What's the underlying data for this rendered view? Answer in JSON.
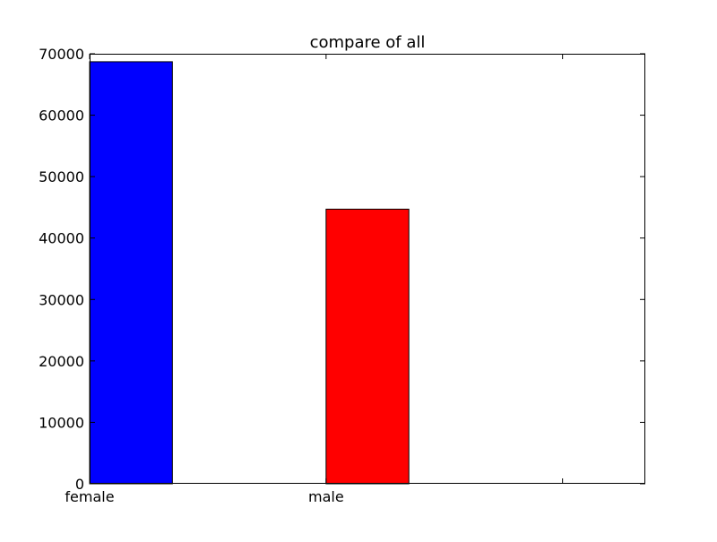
{
  "chart_data": {
    "type": "bar",
    "title": "compare of all",
    "xlabel": "",
    "ylabel": "",
    "categories": [
      "female",
      "male",
      ""
    ],
    "values": [
      68700,
      44700,
      0
    ],
    "colors": [
      "#0000ff",
      "#ff0000",
      "#008000"
    ],
    "ylim": [
      0,
      70000
    ],
    "yticks": [
      0,
      10000,
      20000,
      30000,
      40000,
      50000,
      60000,
      70000
    ],
    "xlim": [
      0,
      2.35
    ],
    "bar_width": 0.35,
    "grid": false,
    "legend": "none"
  }
}
